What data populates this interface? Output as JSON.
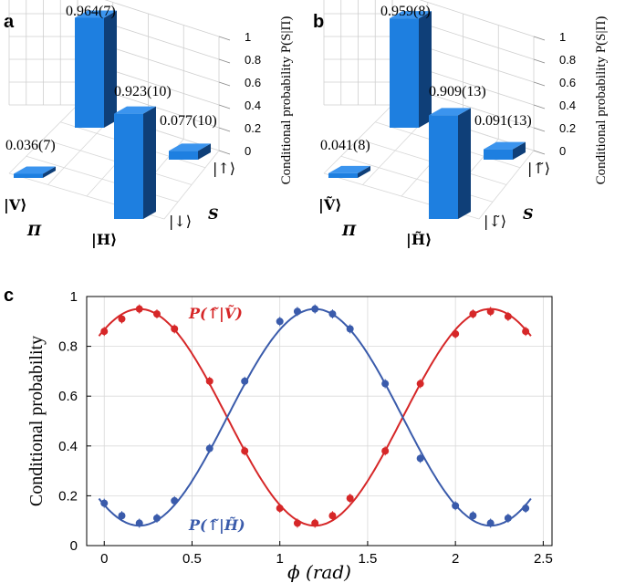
{
  "chart_data": [
    {
      "type": "bar3d",
      "panel": "a",
      "zlabel": "Conditional probability P(S|Π)",
      "zticks": [
        "0",
        "0.2",
        "0.4",
        "0.6",
        "0.8",
        "1"
      ],
      "xaxis_label": "Π",
      "yaxis_label": "S",
      "x_categories": [
        "|V⟩",
        "|H⟩"
      ],
      "y_categories": [
        "|↑⟩",
        "|↓⟩"
      ],
      "bars": [
        {
          "pi": "|V⟩",
          "s": "|↑⟩",
          "value": 0.964,
          "label": "0.964(7)"
        },
        {
          "pi": "|V⟩",
          "s": "|↓⟩",
          "value": 0.036,
          "label": "0.036(7)"
        },
        {
          "pi": "|H⟩",
          "s": "|↓⟩",
          "value": 0.923,
          "label": "0.923(10)"
        },
        {
          "pi": "|H⟩",
          "s": "|↑⟩",
          "value": 0.077,
          "label": "0.077(10)"
        }
      ]
    },
    {
      "type": "bar3d",
      "panel": "b",
      "zlabel": "Conditional probability P(S|Π)",
      "zticks": [
        "0",
        "0.2",
        "0.4",
        "0.6",
        "0.8",
        "1"
      ],
      "xaxis_label": "Π",
      "yaxis_label": "S",
      "x_categories": [
        "|Ṽ⟩",
        "|H̃⟩"
      ],
      "y_categories": [
        "|↑̃⟩",
        "|↓̃⟩"
      ],
      "bars": [
        {
          "pi": "|Ṽ⟩",
          "s": "|↑̃⟩",
          "value": 0.959,
          "label": "0.959(8)"
        },
        {
          "pi": "|Ṽ⟩",
          "s": "|↓̃⟩",
          "value": 0.041,
          "label": "0.041(8)"
        },
        {
          "pi": "|H̃⟩",
          "s": "|↓̃⟩",
          "value": 0.909,
          "label": "0.909(13)"
        },
        {
          "pi": "|H̃⟩",
          "s": "|↑̃⟩",
          "value": 0.091,
          "label": "0.091(13)"
        }
      ]
    },
    {
      "type": "scatter",
      "panel": "c",
      "title": "",
      "xlabel": "ϕ (rad)",
      "ylabel": "Conditional probability",
      "xlim": [
        -0.1,
        2.55
      ],
      "ylim": [
        0,
        1
      ],
      "xticks": [
        0,
        0.5,
        1,
        1.5,
        2,
        2.5
      ],
      "xtick_labels": [
        "0",
        "0.5",
        "1",
        "1.5",
        "2",
        "2.5"
      ],
      "yticks": [
        0,
        0.2,
        0.4,
        0.6,
        0.8,
        1
      ],
      "ytick_labels": [
        "0",
        "0.2",
        "0.4",
        "0.6",
        "0.8",
        "1"
      ],
      "grid": true,
      "x": [
        0,
        0.1,
        0.2,
        0.3,
        0.4,
        0.6,
        0.8,
        1.0,
        1.1,
        1.2,
        1.3,
        1.4,
        1.6,
        1.8,
        2.0,
        2.1,
        2.2,
        2.3,
        2.4
      ],
      "series": [
        {
          "name": "P(↑̃|Ṽ)",
          "color": "#d62728",
          "values": [
            0.86,
            0.91,
            0.95,
            0.93,
            0.87,
            0.66,
            0.38,
            0.15,
            0.09,
            0.09,
            0.12,
            0.19,
            0.38,
            0.65,
            0.85,
            0.93,
            0.94,
            0.92,
            0.86
          ],
          "fit": {
            "offset": 0.515,
            "amplitude": 0.435,
            "center": 0.2,
            "period": 2.0
          }
        },
        {
          "name": "P(↑̃|H̃)",
          "color": "#3a5bab",
          "values": [
            0.17,
            0.12,
            0.09,
            0.11,
            0.18,
            0.39,
            0.66,
            0.9,
            0.94,
            0.95,
            0.93,
            0.87,
            0.65,
            0.35,
            0.16,
            0.12,
            0.09,
            0.11,
            0.15
          ],
          "fit": {
            "offset": 0.515,
            "amplitude": 0.435,
            "center": 1.2,
            "period": 2.0
          }
        }
      ]
    }
  ]
}
